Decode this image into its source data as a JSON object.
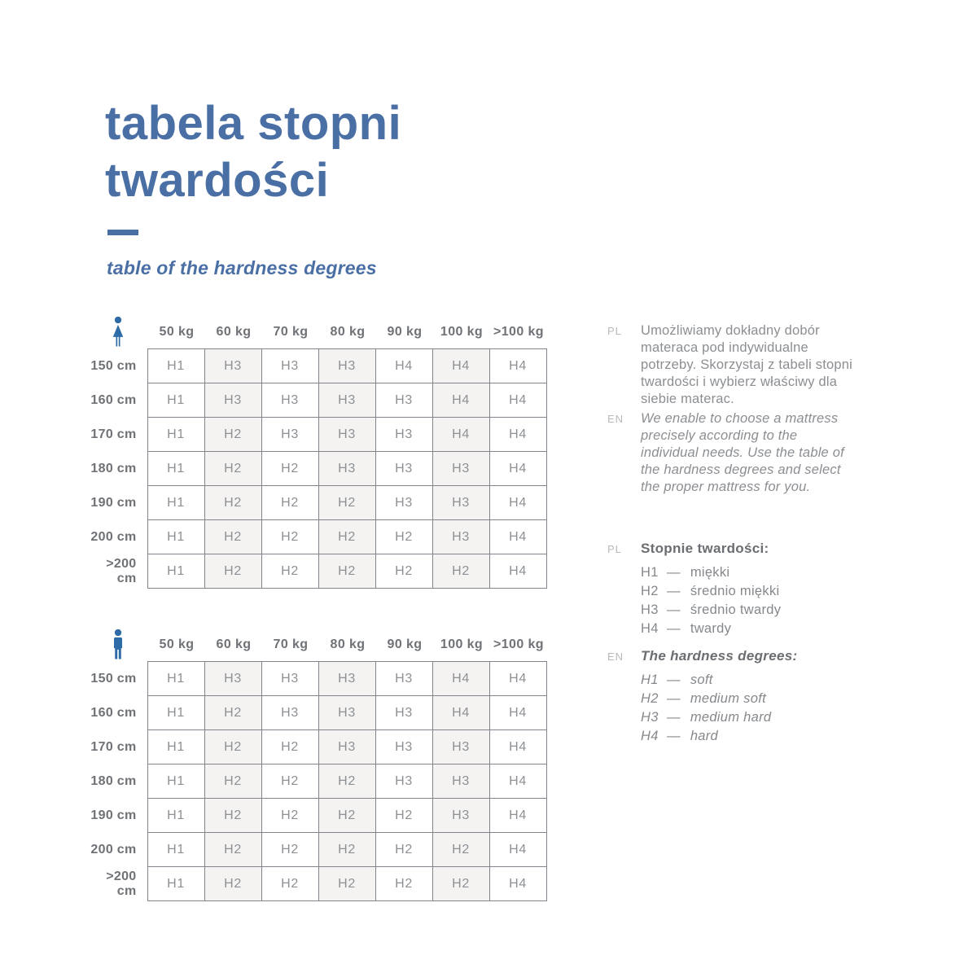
{
  "title": {
    "line1": "tabela stopni",
    "line2": "twardości",
    "subtitle": "table of the hardness degrees"
  },
  "weights": [
    "50 kg",
    "60 kg",
    "70 kg",
    "80 kg",
    "90 kg",
    "100 kg",
    ">100 kg"
  ],
  "tables": [
    {
      "person": "woman",
      "rows": [
        {
          "label": "150 cm",
          "values": [
            "H1",
            "H3",
            "H3",
            "H3",
            "H4",
            "H4",
            "H4"
          ]
        },
        {
          "label": "160 cm",
          "values": [
            "H1",
            "H3",
            "H3",
            "H3",
            "H3",
            "H4",
            "H4"
          ]
        },
        {
          "label": "170 cm",
          "values": [
            "H1",
            "H2",
            "H3",
            "H3",
            "H3",
            "H4",
            "H4"
          ]
        },
        {
          "label": "180 cm",
          "values": [
            "H1",
            "H2",
            "H2",
            "H3",
            "H3",
            "H3",
            "H4"
          ]
        },
        {
          "label": "190 cm",
          "values": [
            "H1",
            "H2",
            "H2",
            "H2",
            "H3",
            "H3",
            "H4"
          ]
        },
        {
          "label": "200 cm",
          "values": [
            "H1",
            "H2",
            "H2",
            "H2",
            "H2",
            "H3",
            "H4"
          ]
        },
        {
          "label": ">200 cm",
          "values": [
            "H1",
            "H2",
            "H2",
            "H2",
            "H2",
            "H2",
            "H4"
          ]
        }
      ]
    },
    {
      "person": "man",
      "rows": [
        {
          "label": "150 cm",
          "values": [
            "H1",
            "H3",
            "H3",
            "H3",
            "H3",
            "H4",
            "H4"
          ]
        },
        {
          "label": "160 cm",
          "values": [
            "H1",
            "H2",
            "H3",
            "H3",
            "H3",
            "H4",
            "H4"
          ]
        },
        {
          "label": "170 cm",
          "values": [
            "H1",
            "H2",
            "H2",
            "H3",
            "H3",
            "H3",
            "H4"
          ]
        },
        {
          "label": "180 cm",
          "values": [
            "H1",
            "H2",
            "H2",
            "H2",
            "H3",
            "H3",
            "H4"
          ]
        },
        {
          "label": "190 cm",
          "values": [
            "H1",
            "H2",
            "H2",
            "H2",
            "H2",
            "H3",
            "H4"
          ]
        },
        {
          "label": "200 cm",
          "values": [
            "H1",
            "H2",
            "H2",
            "H2",
            "H2",
            "H2",
            "H4"
          ]
        },
        {
          "label": ">200 cm",
          "values": [
            "H1",
            "H2",
            "H2",
            "H2",
            "H2",
            "H2",
            "H4"
          ]
        }
      ]
    }
  ],
  "notes": [
    {
      "tag": "PL",
      "text": "Umożliwiamy dokładny dobór\nmateraca pod indywidualne\npotrzeby. Skorzystaj z tabeli stopni\ntwardości i wybierz właściwy dla\nsiebie materac."
    },
    {
      "tag": "EN",
      "text": "We enable to choose a mattress\nprecisely according to the\nindividual needs. Use the table of\nthe hardness degrees and select\nthe proper mattress for you."
    }
  ],
  "legend": [
    {
      "tag": "PL",
      "heading": "Stopnie twardości:",
      "dash": "—",
      "items": [
        {
          "code": "H1",
          "label": "miękki"
        },
        {
          "code": "H2",
          "label": "średnio miękki"
        },
        {
          "code": "H3",
          "label": "średnio twardy"
        },
        {
          "code": "H4",
          "label": "twardy"
        }
      ]
    },
    {
      "tag": "EN",
      "heading": "The hardness degrees:",
      "dash": "—",
      "items": [
        {
          "code": "H1",
          "label": "soft"
        },
        {
          "code": "H2",
          "label": "medium soft"
        },
        {
          "code": "H3",
          "label": "medium hard"
        },
        {
          "code": "H4",
          "label": "hard"
        }
      ]
    }
  ],
  "colors": {
    "accent_blue": "#4a6fa5",
    "icon_blue": "#2d6ca6",
    "cell_shade": "#f4f3f1",
    "border_gray": "#81858b",
    "cell_text_gray": "#8d9094",
    "label_gray": "#6f7276",
    "tag_gray": "#b7b9bc"
  }
}
